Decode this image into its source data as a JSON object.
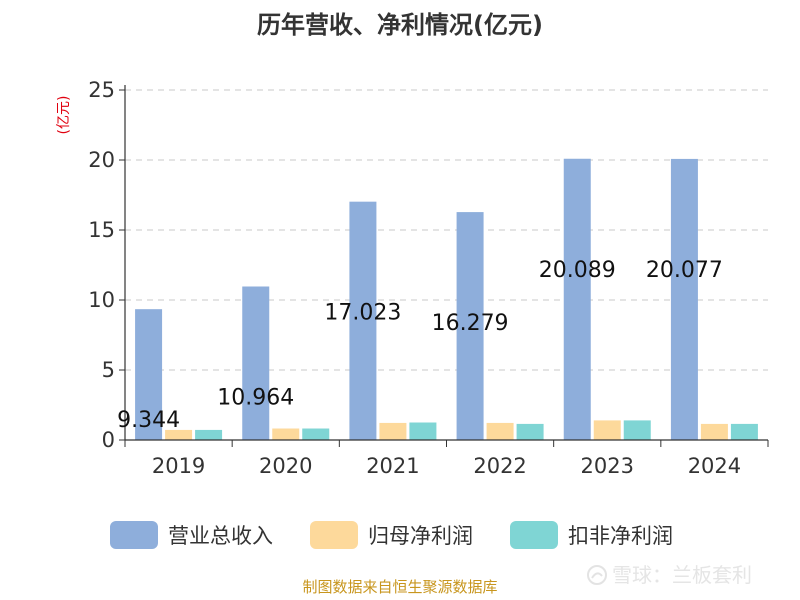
{
  "chart_data": {
    "type": "bar",
    "title": "历年营收、净利情况(亿元)",
    "unit_label": "(亿元)",
    "categories": [
      "2019",
      "2020",
      "2021",
      "2022",
      "2023",
      "2024"
    ],
    "ylim": [
      0,
      25
    ],
    "yticks": [
      0,
      5,
      10,
      15,
      20,
      25
    ],
    "grid": true,
    "legend_position": "bottom",
    "series": [
      {
        "name": "营业总收入",
        "color": "#8eaedb",
        "values": [
          9.344,
          10.964,
          17.023,
          16.279,
          20.089,
          20.077
        ],
        "labels": [
          "9.344",
          "10.964",
          "17.023",
          "16.279",
          "20.089",
          "20.077"
        ]
      },
      {
        "name": "归母净利润",
        "color": "#fdd99b",
        "values": [
          0.72,
          0.82,
          1.22,
          1.22,
          1.4,
          1.15
        ]
      },
      {
        "name": "扣非净利润",
        "color": "#7fd5d4",
        "values": [
          0.72,
          0.82,
          1.25,
          1.15,
          1.4,
          1.15
        ]
      }
    ]
  },
  "footer": {
    "source": "制图数据来自恒生聚源数据库",
    "watermark": "雪球：兰板套利",
    "watermark_icon": "snowball-logo-icon"
  }
}
